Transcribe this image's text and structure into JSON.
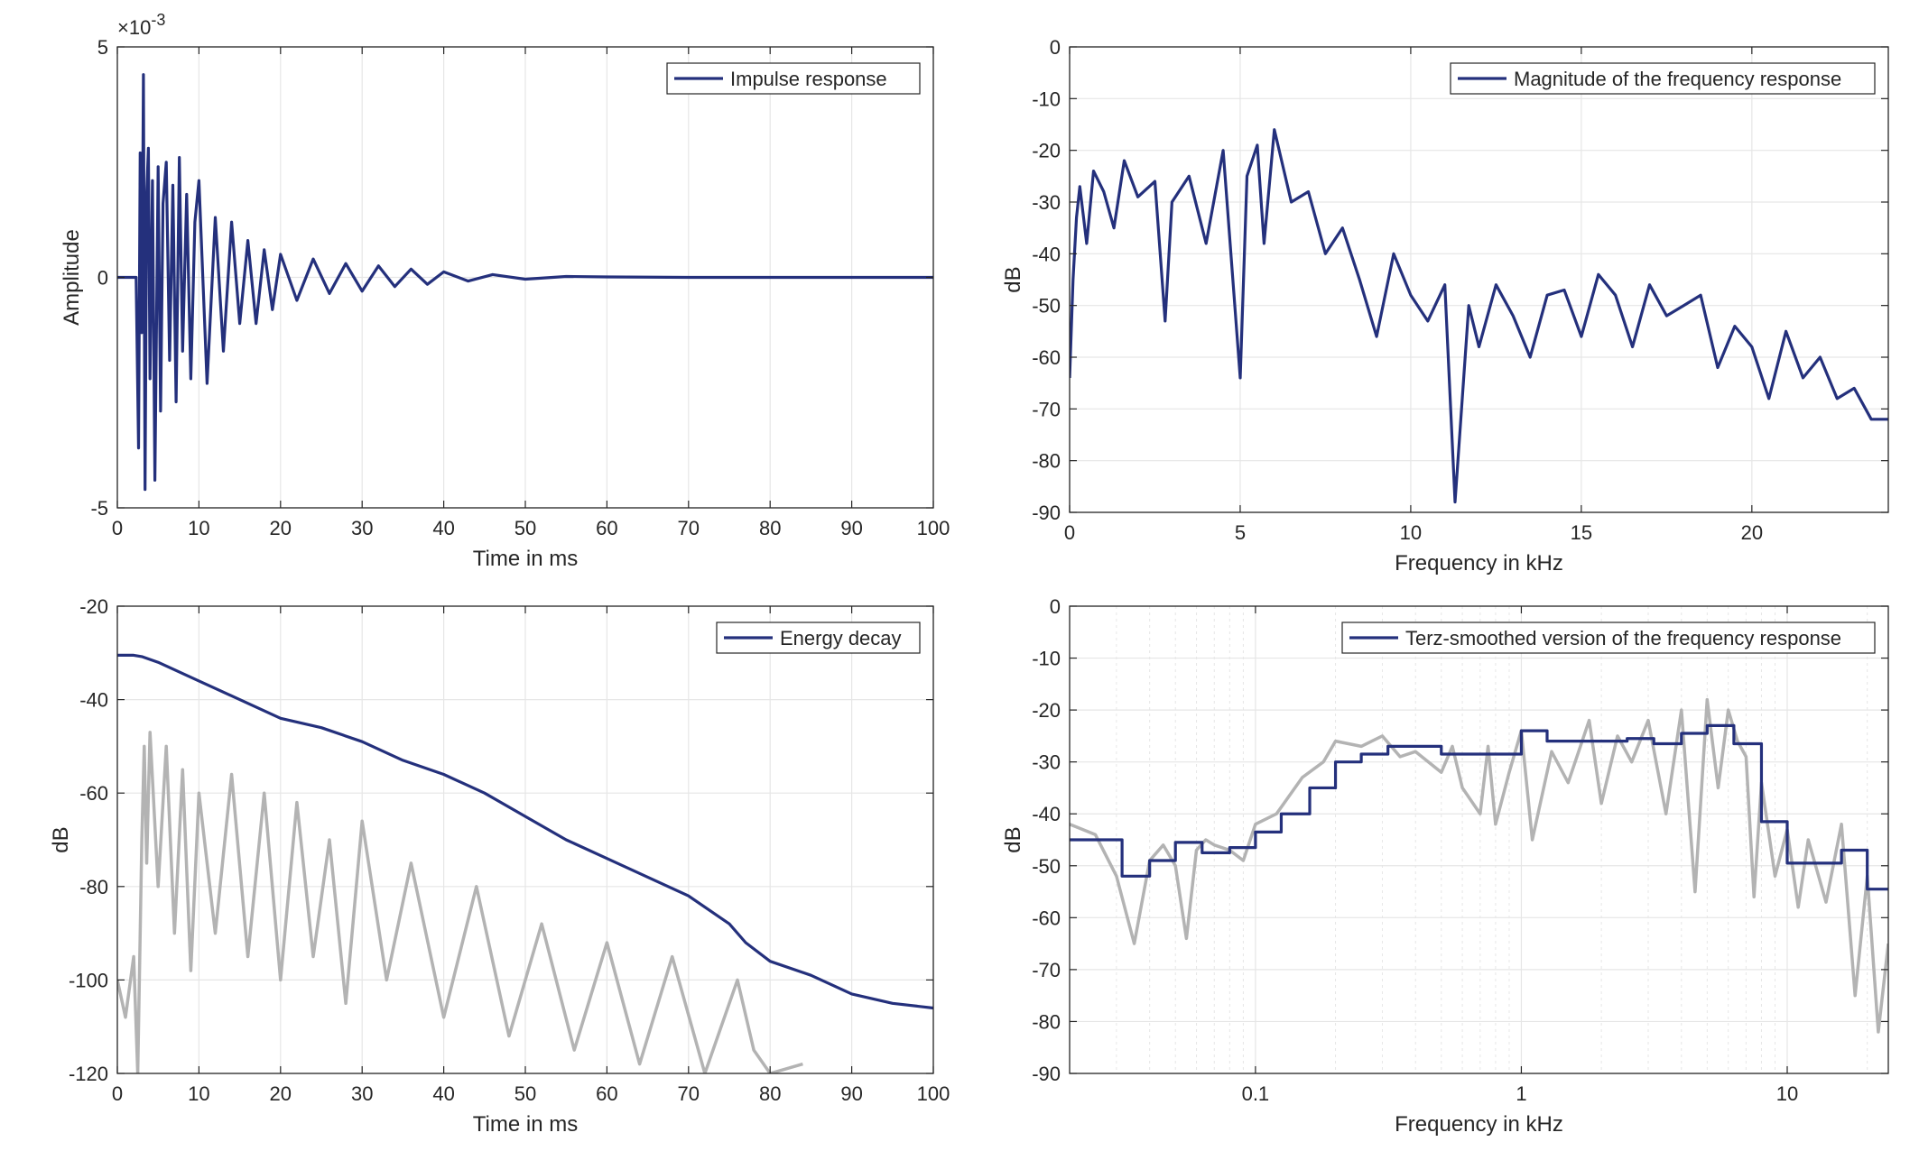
{
  "figure": {
    "colors": {
      "series": "#24307c",
      "raw": "#b3b3b3",
      "grid": "#e6e6e6",
      "axis": "#262626"
    }
  },
  "chart_data": [
    {
      "id": "impulse",
      "type": "line",
      "xlabel": "Time in ms",
      "ylabel": "Amplitude",
      "exponent_label": "×10",
      "exponent_power": "-3",
      "xlim": [
        0,
        100
      ],
      "ylim": [
        -5,
        5
      ],
      "xticks": [
        0,
        10,
        20,
        30,
        40,
        50,
        60,
        70,
        80,
        90,
        100
      ],
      "yticks": [
        -5,
        0,
        5
      ],
      "grid": true,
      "legend_position": "top-right",
      "series": [
        {
          "name": "Impulse response",
          "color": "#24307c",
          "x": [
            0,
            2.3,
            2.6,
            2.8,
            3.0,
            3.2,
            3.4,
            3.6,
            3.8,
            4.0,
            4.3,
            4.6,
            5.0,
            5.3,
            5.6,
            6.0,
            6.4,
            6.8,
            7.2,
            7.6,
            8.0,
            8.5,
            9.0,
            9.5,
            10,
            11,
            12,
            13,
            14,
            15,
            16,
            17,
            18,
            19,
            20,
            22,
            24,
            26,
            28,
            30,
            32,
            34,
            36,
            38,
            40,
            43,
            46,
            50,
            55,
            60,
            70,
            80,
            90,
            100
          ],
          "y": [
            0,
            0,
            -3.7,
            2.7,
            -1.2,
            4.4,
            -4.6,
            1.8,
            2.8,
            -2.2,
            2.1,
            -4.4,
            2.4,
            -2.9,
            1.6,
            2.5,
            -1.8,
            2.0,
            -2.7,
            2.6,
            -1.6,
            1.8,
            -2.2,
            1.2,
            2.1,
            -2.3,
            1.3,
            -1.6,
            1.2,
            -1.0,
            0.8,
            -1.0,
            0.6,
            -0.7,
            0.5,
            -0.5,
            0.4,
            -0.35,
            0.3,
            -0.3,
            0.25,
            -0.2,
            0.18,
            -0.15,
            0.12,
            -0.08,
            0.06,
            -0.04,
            0.02,
            0.01,
            0,
            0,
            0,
            0
          ]
        }
      ]
    },
    {
      "id": "magnitude",
      "type": "line",
      "xlabel": "Frequency in kHz",
      "ylabel": "dB",
      "xlim": [
        0,
        24
      ],
      "ylim": [
        -90,
        0
      ],
      "xticks": [
        0,
        5,
        10,
        15,
        20
      ],
      "yticks": [
        -90,
        -80,
        -70,
        -60,
        -50,
        -40,
        -30,
        -20,
        -10,
        0
      ],
      "grid": true,
      "legend_position": "top-right",
      "series": [
        {
          "name": "Magnitude of the frequency response",
          "color": "#24307c",
          "x": [
            0,
            0.1,
            0.2,
            0.3,
            0.5,
            0.7,
            1.0,
            1.3,
            1.6,
            2.0,
            2.5,
            2.8,
            3.0,
            3.5,
            4.0,
            4.5,
            5.0,
            5.2,
            5.5,
            5.7,
            6.0,
            6.5,
            7.0,
            7.5,
            8.0,
            8.5,
            9.0,
            9.5,
            10,
            10.5,
            11,
            11.3,
            11.7,
            12,
            12.5,
            13,
            13.5,
            14,
            14.5,
            15,
            15.5,
            16,
            16.5,
            17,
            17.5,
            18,
            18.5,
            19,
            19.5,
            20,
            20.5,
            21,
            21.5,
            22,
            22.5,
            23,
            23.5,
            24
          ],
          "y": [
            -64,
            -45,
            -33,
            -27,
            -38,
            -24,
            -28,
            -35,
            -22,
            -29,
            -26,
            -53,
            -30,
            -25,
            -38,
            -20,
            -64,
            -25,
            -19,
            -38,
            -16,
            -30,
            -28,
            -40,
            -35,
            -45,
            -56,
            -40,
            -48,
            -53,
            -46,
            -88,
            -50,
            -58,
            -46,
            -52,
            -60,
            -48,
            -47,
            -56,
            -44,
            -48,
            -58,
            -46,
            -52,
            -50,
            -48,
            -62,
            -54,
            -58,
            -68,
            -55,
            -64,
            -60,
            -68,
            -66,
            -72,
            -72
          ]
        }
      ]
    },
    {
      "id": "energy",
      "type": "line",
      "xlabel": "Time in ms",
      "ylabel": "dB",
      "xlim": [
        0,
        100
      ],
      "ylim": [
        -120,
        -20
      ],
      "xticks": [
        0,
        10,
        20,
        30,
        40,
        50,
        60,
        70,
        80,
        90,
        100
      ],
      "yticks": [
        -120,
        -100,
        -80,
        -60,
        -40,
        -20
      ],
      "grid": true,
      "legend_position": "top-right",
      "series": [
        {
          "name": "Energy decay",
          "color": "#24307c",
          "x": [
            0,
            2,
            3,
            5,
            10,
            15,
            20,
            25,
            30,
            35,
            40,
            45,
            50,
            55,
            60,
            65,
            70,
            75,
            77,
            80,
            85,
            90,
            95,
            100
          ],
          "y": [
            -30.5,
            -30.5,
            -30.8,
            -32,
            -36,
            -40,
            -44,
            -46,
            -49,
            -53,
            -56,
            -60,
            -65,
            -70,
            -74,
            -78,
            -82,
            -88,
            -92,
            -96,
            -99,
            -103,
            -105,
            -106
          ]
        },
        {
          "name": "",
          "color": "#b3b3b3",
          "x": [
            0,
            1,
            2,
            2.5,
            3,
            3.3,
            3.6,
            4,
            5,
            6,
            7,
            8,
            9,
            10,
            12,
            14,
            16,
            18,
            20,
            22,
            24,
            26,
            28,
            30,
            33,
            36,
            40,
            44,
            48,
            52,
            56,
            60,
            64,
            68,
            72,
            76,
            78,
            80,
            84
          ],
          "y": [
            -100,
            -108,
            -95,
            -120,
            -70,
            -50,
            -75,
            -47,
            -80,
            -50,
            -90,
            -55,
            -98,
            -60,
            -90,
            -56,
            -95,
            -60,
            -100,
            -62,
            -95,
            -70,
            -105,
            -66,
            -100,
            -75,
            -108,
            -80,
            -112,
            -88,
            -115,
            -92,
            -118,
            -95,
            -120,
            -100,
            -115,
            -120,
            -118
          ]
        }
      ]
    },
    {
      "id": "terz",
      "type": "line",
      "xlabel": "Frequency in kHz",
      "ylabel": "dB",
      "xscale": "log",
      "xlim": [
        0.02,
        24
      ],
      "ylim": [
        -90,
        0
      ],
      "xticks": [
        0.1,
        1,
        10
      ],
      "xticklabels": [
        "0.1",
        "1",
        "10"
      ],
      "yticks": [
        -90,
        -80,
        -70,
        -60,
        -50,
        -40,
        -30,
        -20,
        -10,
        0
      ],
      "grid": true,
      "legend_position": "top-right",
      "series": [
        {
          "name": "Terz-smoothed version of the frequency response",
          "color": "#24307c",
          "step": true,
          "x": [
            0.02,
            0.0315,
            0.04,
            0.05,
            0.063,
            0.08,
            0.1,
            0.125,
            0.16,
            0.2,
            0.25,
            0.315,
            0.4,
            0.5,
            0.63,
            0.8,
            1.0,
            1.25,
            1.6,
            2.0,
            2.5,
            3.15,
            4.0,
            5.0,
            6.3,
            8.0,
            10,
            12.5,
            16,
            20,
            24
          ],
          "y": [
            -45,
            -52,
            -49,
            -45.5,
            -47.5,
            -46.5,
            -43.5,
            -40,
            -35,
            -30,
            -28.5,
            -27,
            -27,
            -28.5,
            -28.5,
            -28.5,
            -24,
            -26,
            -26,
            -26,
            -25.5,
            -26.5,
            -24.5,
            -23,
            -26.5,
            -41.5,
            -49.5,
            -49.5,
            -47,
            -54.5,
            -54.5
          ]
        },
        {
          "name": "",
          "color": "#b3b3b3",
          "x": [
            0.02,
            0.025,
            0.03,
            0.035,
            0.04,
            0.045,
            0.05,
            0.055,
            0.06,
            0.065,
            0.07,
            0.08,
            0.09,
            0.1,
            0.12,
            0.15,
            0.18,
            0.2,
            0.25,
            0.3,
            0.35,
            0.4,
            0.5,
            0.55,
            0.6,
            0.7,
            0.75,
            0.8,
            0.9,
            1.0,
            1.1,
            1.3,
            1.5,
            1.8,
            2.0,
            2.3,
            2.6,
            3.0,
            3.5,
            4.0,
            4.5,
            5.0,
            5.5,
            6.0,
            6.5,
            7.0,
            7.5,
            8.0,
            9.0,
            10,
            11,
            12,
            14,
            16,
            18,
            20,
            22,
            24
          ],
          "y": [
            -42,
            -44,
            -52,
            -65,
            -49,
            -46,
            -50,
            -64,
            -47,
            -45,
            -46,
            -47,
            -49,
            -42,
            -40,
            -33,
            -30,
            -26,
            -27,
            -25,
            -29,
            -28,
            -32,
            -27,
            -35,
            -40,
            -27,
            -42,
            -32,
            -24,
            -45,
            -28,
            -34,
            -22,
            -38,
            -25,
            -30,
            -22,
            -40,
            -20,
            -55,
            -18,
            -35,
            -20,
            -26,
            -29,
            -56,
            -34,
            -52,
            -43,
            -58,
            -45,
            -57,
            -42,
            -75,
            -52,
            -82,
            -65
          ]
        }
      ]
    }
  ]
}
